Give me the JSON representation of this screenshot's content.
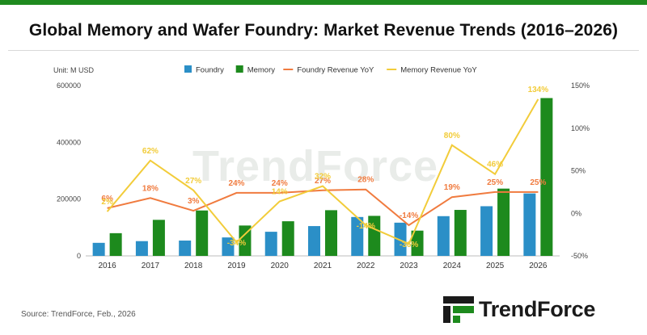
{
  "page": {
    "title": "Global Memory and Wafer Foundry: Market Revenue Trends (2016–2026)",
    "source": "Source: TrendForce, Feb., 2026",
    "brand": "TrendForce",
    "watermark": "TrendForce"
  },
  "chart_data": {
    "type": "bar",
    "unit_label": "Unit: M USD",
    "categories": [
      "2016",
      "2017",
      "2018",
      "2019",
      "2020",
      "2021",
      "2022",
      "2023",
      "2024",
      "2025",
      "2026"
    ],
    "series": [
      {
        "name": "Foundry",
        "kind": "bar",
        "axis": "left",
        "color": "#2b8fc7",
        "values": [
          46000,
          52000,
          54000,
          65000,
          85000,
          105000,
          137000,
          117000,
          140000,
          175000,
          220000
        ]
      },
      {
        "name": "Memory",
        "kind": "bar",
        "axis": "left",
        "color": "#1d8a1d",
        "values": [
          80000,
          127000,
          160000,
          107000,
          122000,
          161000,
          141000,
          89000,
          162000,
          237000,
          556000
        ]
      },
      {
        "name": "Foundry Revenue YoY",
        "kind": "line",
        "axis": "right",
        "color": "#f07b3f",
        "values": [
          6,
          18,
          3,
          24,
          24,
          27,
          28,
          -14,
          19,
          25,
          25
        ],
        "labels": [
          "6%",
          "18%",
          "3%",
          "24%",
          "24%",
          "27%",
          "28%",
          "-14%",
          "19%",
          "25%",
          "25%"
        ]
      },
      {
        "name": "Memory Revenue YoY",
        "kind": "line",
        "axis": "right",
        "color": "#f2cc3a",
        "values": [
          2,
          62,
          27,
          -34,
          14,
          32,
          -14,
          -36,
          80,
          46,
          134
        ],
        "labels": [
          "2%",
          "62%",
          "27%",
          "-34%",
          "14%",
          "32%",
          "-14%",
          "-36%",
          "80%",
          "46%",
          "134%"
        ]
      }
    ],
    "y_left": {
      "min": 0,
      "max": 600000,
      "ticks": [
        0,
        200000,
        400000,
        600000
      ],
      "tick_labels": [
        "0",
        "200000",
        "400000",
        "600000"
      ]
    },
    "y_right": {
      "min": -50,
      "max": 150,
      "ticks": [
        -50,
        0,
        50,
        100,
        150
      ],
      "tick_labels": [
        "-50%",
        "0%",
        "50%",
        "100%",
        "150%"
      ]
    },
    "grid": false,
    "legend": "top-center"
  }
}
